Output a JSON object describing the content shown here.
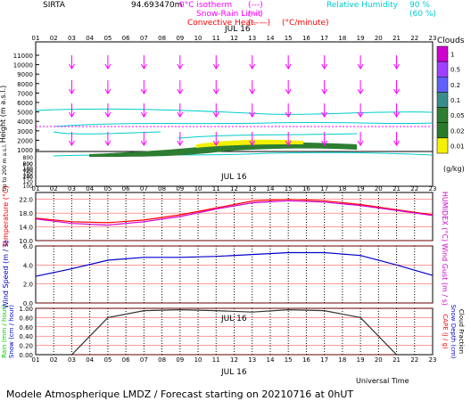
{
  "header": {
    "site": "SIRTA",
    "coordinate": "94.693470m",
    "rh_legend": "Relative Humidity",
    "rh_90": "90 %",
    "rh_60": "(60 %)",
    "legend": [
      {
        "label": "0°C isotherm",
        "style": "(---)",
        "color": "#ff00ff"
      },
      {
        "label": "Snow-Rain Limit",
        "style": "(---)",
        "color": "#ff00ff"
      },
      {
        "label": "Convective Heat.",
        "style": "(——)",
        "color": "#ff0000"
      }
    ],
    "unit_note": "(°C/minute)"
  },
  "hours": [
    "01",
    "02",
    "03",
    "04",
    "05",
    "06",
    "07",
    "08",
    "09",
    "10",
    "11",
    "12",
    "13",
    "14",
    "15",
    "16",
    "17",
    "18",
    "19",
    "20",
    "21",
    "22",
    "23"
  ],
  "date_label": "JUL 16",
  "footer": "Modele Atmospherique LMDZ / Forecast starting on 20210716 at 0hUT",
  "universal_time": "Universal Time",
  "clouds": {
    "title": "Clouds",
    "unit": "(g/kg)",
    "scale": [
      "1",
      "0.5",
      "0.2",
      "0.1",
      "0.05",
      "0.02",
      "0.01"
    ],
    "colors": [
      "#d000d0",
      "#a040ff",
      "#6060ff",
      "#3a8c8c",
      "#2e7d32",
      "#2a7a2a",
      "#f5f000"
    ]
  },
  "chart_data": [
    {
      "type": "heatmap",
      "ylabel": "Height (m a.s.l.)",
      "ylabel2": "Up to 200 m a.s.l.",
      "yticks": [
        "11000",
        "10000",
        "9000",
        "8000",
        "7000",
        "6000",
        "5000",
        "4000",
        "3000",
        "2000",
        "1000",
        "800",
        "600",
        "400",
        "200"
      ],
      "yticks_low": [
        "200",
        "180",
        "160",
        "140",
        "120",
        "100"
      ],
      "cloud_layer": {
        "height_m": 1000,
        "hours": [
          6,
          20
        ]
      },
      "wind_arrows": "pink arrows pointing down/south at every 2h, levels ~9000, 6000, 3000, 1000 m"
    },
    {
      "type": "line",
      "ylabel": "Temperature (°C)",
      "ylabel2": "HUMIDEX (°C)",
      "yticks": [
        "22.0",
        "18.0",
        "14.0",
        "10.0"
      ],
      "ylim": [
        10,
        24
      ],
      "x": [
        1,
        3,
        5,
        7,
        9,
        11,
        13,
        15,
        17,
        19,
        21,
        23
      ],
      "series": [
        {
          "color": "#ff0000",
          "values": [
            16.5,
            15.5,
            15.2,
            16,
            17.5,
            19.5,
            21.5,
            22,
            21.6,
            20.5,
            19,
            17.5
          ]
        },
        {
          "color": "#d000d0",
          "values": [
            16.3,
            15,
            14.5,
            15.5,
            17,
            19.2,
            21,
            21.6,
            21.2,
            20.2,
            18.8,
            17.3
          ]
        }
      ]
    },
    {
      "type": "line",
      "ylabel": "Wind Speed (m / s)",
      "ylabel2": "Wind Gust (m / s)",
      "yticks": [
        "6.0",
        "4.0",
        "2.0",
        "0.0"
      ],
      "ylim": [
        0,
        6
      ],
      "x": [
        1,
        3,
        5,
        7,
        9,
        11,
        13,
        15,
        17,
        19,
        21,
        23
      ],
      "series": [
        {
          "color": "#0000cc",
          "values": [
            2.8,
            3.6,
            4.5,
            4.8,
            4.8,
            4.9,
            5.1,
            5.3,
            5.3,
            5.0,
            4.0,
            2.9
          ]
        }
      ]
    },
    {
      "type": "line",
      "ylabel": "Rain (mm / hour)",
      "ylabel_snow": "Snow (cm / hour)",
      "ylabel2": "CAPE (J / g)",
      "ylabel3": "Snow Depth (cm)",
      "ylabel4": "Cloud Fraction",
      "yticks": [
        "1.00",
        "0.80",
        "0.60",
        "0.40",
        "0.20",
        "0.00"
      ],
      "ylim": [
        0,
        1
      ],
      "x": [
        1,
        3,
        5,
        7,
        9,
        11,
        13,
        15,
        17,
        19,
        21,
        23
      ],
      "series": [
        {
          "color": "#333333",
          "values": [
            0,
            0,
            0.8,
            0.95,
            0.97,
            0.95,
            0.92,
            0.97,
            0.95,
            0.8,
            0,
            0
          ]
        }
      ]
    }
  ]
}
